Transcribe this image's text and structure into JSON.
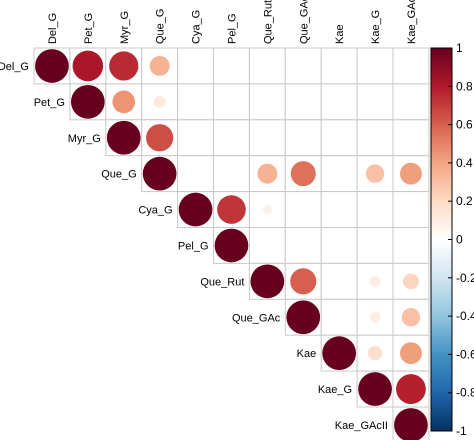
{
  "chart_data": {
    "type": "heatmap",
    "style": "circle-correlation-matrix-upper",
    "variables": [
      "Del_G",
      "Pet_G",
      "Myr_G",
      "Que_G",
      "Cya_G",
      "Pel_G",
      "Que_Rut",
      "Que_GAc",
      "Kae",
      "Kae_G",
      "Kae_GAcII"
    ],
    "cells": [
      {
        "row": "Del_G",
        "col": "Del_G",
        "value": 1.0
      },
      {
        "row": "Del_G",
        "col": "Pet_G",
        "value": 0.82
      },
      {
        "row": "Del_G",
        "col": "Myr_G",
        "value": 0.75
      },
      {
        "row": "Del_G",
        "col": "Que_G",
        "value": 0.35
      },
      {
        "row": "Pet_G",
        "col": "Pet_G",
        "value": 1.0
      },
      {
        "row": "Pet_G",
        "col": "Myr_G",
        "value": 0.45
      },
      {
        "row": "Pet_G",
        "col": "Que_G",
        "value": 0.12
      },
      {
        "row": "Myr_G",
        "col": "Myr_G",
        "value": 1.0
      },
      {
        "row": "Myr_G",
        "col": "Que_G",
        "value": 0.65
      },
      {
        "row": "Que_G",
        "col": "Que_G",
        "value": 1.0
      },
      {
        "row": "Que_G",
        "col": "Que_Rut",
        "value": 0.35
      },
      {
        "row": "Que_G",
        "col": "Que_GAc",
        "value": 0.55
      },
      {
        "row": "Que_G",
        "col": "Kae_G",
        "value": 0.3
      },
      {
        "row": "Que_G",
        "col": "Kae_GAcII",
        "value": 0.42
      },
      {
        "row": "Cya_G",
        "col": "Cya_G",
        "value": 1.0
      },
      {
        "row": "Cya_G",
        "col": "Pel_G",
        "value": 0.72
      },
      {
        "row": "Cya_G",
        "col": "Que_Rut",
        "value": 0.08
      },
      {
        "row": "Pel_G",
        "col": "Pel_G",
        "value": 1.0
      },
      {
        "row": "Que_Rut",
        "col": "Que_Rut",
        "value": 1.0
      },
      {
        "row": "Que_Rut",
        "col": "Que_GAc",
        "value": 0.6
      },
      {
        "row": "Que_Rut",
        "col": "Kae_G",
        "value": 0.1
      },
      {
        "row": "Que_Rut",
        "col": "Kae_GAcII",
        "value": 0.22
      },
      {
        "row": "Que_GAc",
        "col": "Que_GAc",
        "value": 1.0
      },
      {
        "row": "Que_GAc",
        "col": "Kae_G",
        "value": 0.1
      },
      {
        "row": "Que_GAc",
        "col": "Kae_GAcII",
        "value": 0.3
      },
      {
        "row": "Kae",
        "col": "Kae",
        "value": 1.0
      },
      {
        "row": "Kae",
        "col": "Kae_G",
        "value": 0.18
      },
      {
        "row": "Kae",
        "col": "Kae_GAcII",
        "value": 0.42
      },
      {
        "row": "Kae_G",
        "col": "Kae_G",
        "value": 1.0
      },
      {
        "row": "Kae_G",
        "col": "Kae_GAcII",
        "value": 0.78
      },
      {
        "row": "Kae_GAcII",
        "col": "Kae_GAcII",
        "value": 1.0
      }
    ],
    "colorbar": {
      "range": [
        -1,
        1
      ],
      "ticks": [
        "1",
        "0.8",
        "0.6",
        "0.4",
        "0.2",
        "0",
        "-0.2",
        "-0.4",
        "-0.6",
        "-0.8",
        "-1"
      ],
      "tick_values": [
        1,
        0.8,
        0.6,
        0.4,
        0.2,
        0,
        -0.2,
        -0.4,
        -0.6,
        -0.8,
        -1
      ],
      "colors": [
        "#67001F",
        "#B2182B",
        "#D6604D",
        "#F4A582",
        "#FDDBC7",
        "#FFFFFF",
        "#D1E5F0",
        "#92C5DE",
        "#4393C3",
        "#2166AC",
        "#053061"
      ]
    },
    "grid": true
  }
}
